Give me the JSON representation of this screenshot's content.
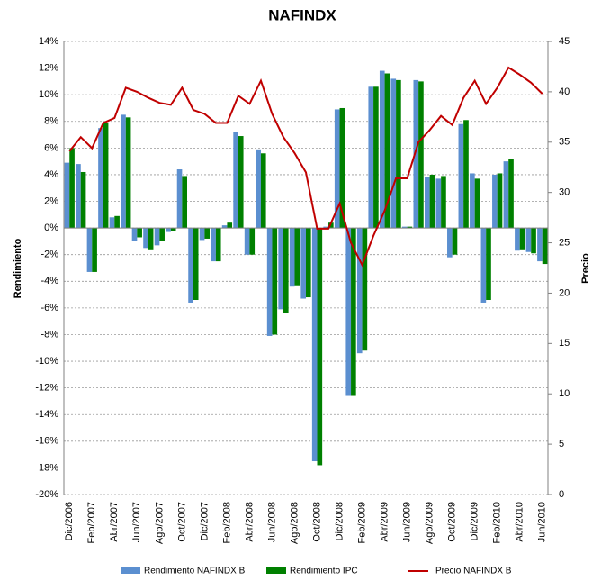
{
  "chart_data": {
    "type": "bar",
    "title": "NAFINDX",
    "ylabel": "Rendimiento",
    "y2label": "Precio",
    "categories": [
      "Dic/2006",
      null,
      "Feb/2007",
      null,
      "Abr/2007",
      null,
      "Jun/2007",
      null,
      "Ago/2007",
      null,
      "Oct/2007",
      null,
      "Dic/2007",
      null,
      "Feb/2008",
      null,
      "Abr/2008",
      null,
      "Jun/2008",
      null,
      "Ago/2008",
      null,
      "Oct/2008",
      null,
      "Dic/2008",
      null,
      "Feb/2009",
      null,
      "Abr/2009",
      null,
      "Jun/2009",
      null,
      "Ago/2009",
      null,
      "Oct/2009",
      null,
      "Dic/2009",
      null,
      "Feb/2010",
      null,
      "Abr/2010",
      null,
      "Jun/2010"
    ],
    "series": [
      {
        "name": "Rendimiento NAFINDX B",
        "type": "bar",
        "color": "#5b8fd0",
        "values": [
          4.9,
          4.8,
          -3.3,
          7.5,
          0.8,
          8.5,
          -1.0,
          -1.5,
          -1.3,
          -0.3,
          4.4,
          -5.6,
          -0.9,
          -2.5,
          0.2,
          7.2,
          -2.0,
          5.9,
          -8.1,
          -6.1,
          -4.4,
          -5.3,
          -17.5,
          0.1,
          8.9,
          -12.6,
          -9.4,
          10.6,
          11.8,
          11.2,
          0.1,
          11.1,
          3.8,
          3.7,
          -2.2,
          7.8,
          4.1,
          -5.6,
          4.0,
          5.0,
          -1.7,
          -1.8,
          -2.5
        ]
      },
      {
        "name": "Rendimiento IPC",
        "type": "bar",
        "color": "#008000",
        "values": [
          6.0,
          4.2,
          -3.3,
          7.9,
          0.9,
          8.3,
          -0.7,
          -1.6,
          -1.0,
          -0.2,
          3.9,
          -5.4,
          -0.8,
          -2.5,
          0.4,
          6.9,
          -2.0,
          5.6,
          -8.0,
          -6.4,
          -4.3,
          -5.2,
          -17.8,
          0.4,
          9.0,
          -12.6,
          -9.2,
          10.6,
          11.6,
          11.1,
          0.1,
          11.0,
          4.0,
          3.9,
          -2.0,
          8.1,
          3.7,
          -5.4,
          4.1,
          5.2,
          -1.6,
          -1.9,
          -2.7
        ]
      },
      {
        "name": "Precio NAFINDX B",
        "type": "line",
        "axis": "y2",
        "color": "#c00000",
        "values": [
          34.1,
          35.5,
          34.4,
          36.9,
          37.4,
          40.4,
          40.0,
          39.4,
          38.9,
          38.7,
          40.4,
          38.2,
          37.8,
          36.9,
          36.9,
          39.6,
          38.8,
          41.1,
          37.8,
          35.5,
          33.9,
          32.0,
          26.4,
          26.4,
          28.9,
          25.0,
          22.8,
          25.7,
          28.2,
          31.4,
          31.4,
          35.0,
          36.2,
          37.6,
          36.7,
          39.4,
          41.1,
          38.8,
          40.4,
          42.4,
          41.7,
          40.9,
          39.8
        ]
      }
    ],
    "ylim": [
      -20,
      14
    ],
    "yticks": [
      {
        "value": -20,
        "label": "-20%"
      },
      {
        "value": -18,
        "label": "-18%"
      },
      {
        "value": -16,
        "label": "-16%"
      },
      {
        "value": -14,
        "label": "-14%"
      },
      {
        "value": -12,
        "label": "-12%"
      },
      {
        "value": -10,
        "label": "-10%"
      },
      {
        "value": -8,
        "label": "-8%"
      },
      {
        "value": -6,
        "label": "-6%"
      },
      {
        "value": -4,
        "label": "-4%"
      },
      {
        "value": -2,
        "label": "-2%"
      },
      {
        "value": 0,
        "label": "0%"
      },
      {
        "value": 2,
        "label": "2%"
      },
      {
        "value": 4,
        "label": "4%"
      },
      {
        "value": 6,
        "label": "6%"
      },
      {
        "value": 8,
        "label": "8%"
      },
      {
        "value": 10,
        "label": "10%"
      },
      {
        "value": 12,
        "label": "12%"
      },
      {
        "value": 14,
        "label": "14%"
      }
    ],
    "y2lim": [
      0,
      45
    ],
    "y2ticks": [
      0,
      5,
      10,
      15,
      20,
      25,
      30,
      35,
      40,
      45
    ],
    "grid": true,
    "legend": "bottom"
  }
}
